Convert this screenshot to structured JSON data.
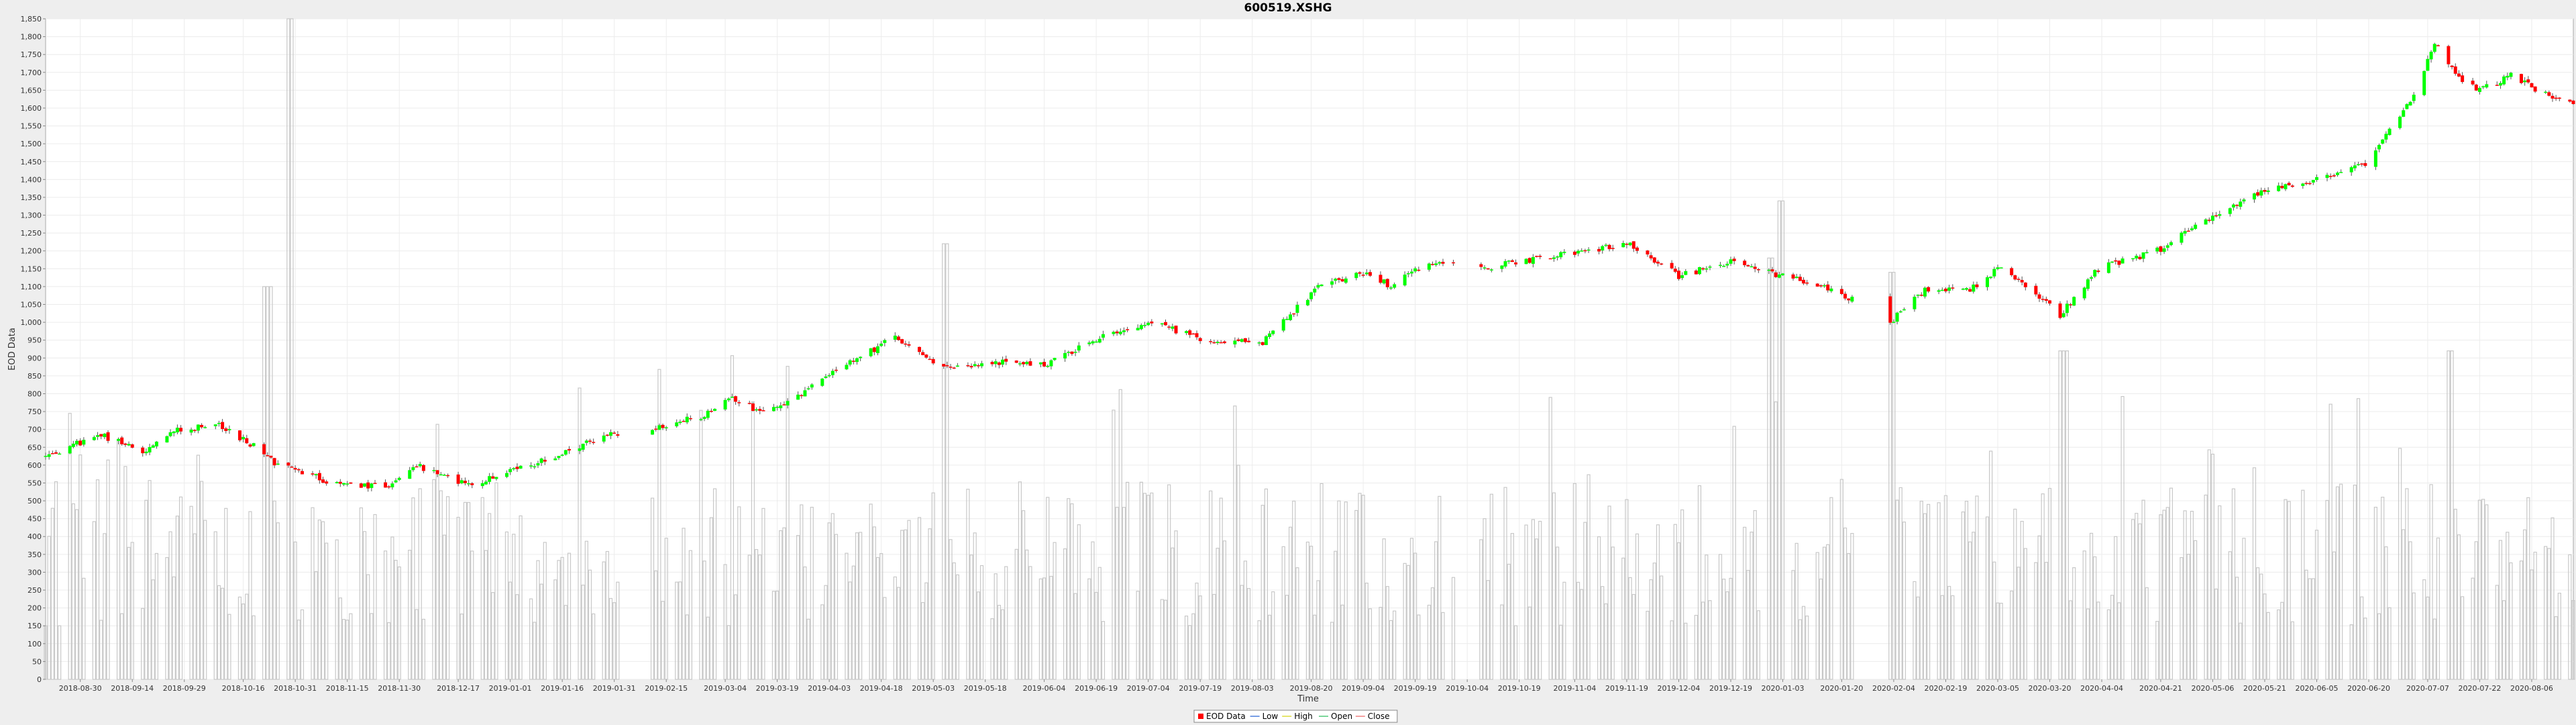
{
  "chart_data": {
    "type": "candlestick",
    "title": "600519.XSHG",
    "xlabel": "Time",
    "ylabel": "EOD Data",
    "ylim": [
      0,
      1850
    ],
    "y_ticks": [
      0,
      50,
      100,
      150,
      200,
      250,
      300,
      350,
      400,
      450,
      500,
      550,
      600,
      650,
      700,
      750,
      800,
      850,
      900,
      950,
      1000,
      1050,
      1100,
      1150,
      1200,
      1250,
      1300,
      1350,
      1400,
      1450,
      1500,
      1550,
      1600,
      1650,
      1700,
      1750,
      1800,
      1850
    ],
    "x_tick_labels": [
      "2018-08-30",
      "2018-09-14",
      "2018-09-29",
      "2018-10-16",
      "2018-10-31",
      "2018-11-15",
      "2018-11-30",
      "2018-12-17",
      "2019-01-01",
      "2019-01-16",
      "2019-01-31",
      "2019-02-15",
      "2019-03-04",
      "2019-03-19",
      "2019-04-03",
      "2019-04-18",
      "2019-05-03",
      "2019-05-18",
      "2019-06-04",
      "2019-06-19",
      "2019-07-04",
      "2019-07-19",
      "2019-08-03",
      "2019-08-20",
      "2019-09-04",
      "2019-09-19",
      "2019-10-04",
      "2019-10-19",
      "2019-11-04",
      "2019-11-19",
      "2019-12-04",
      "2019-12-19",
      "2020-01-03",
      "2020-01-20",
      "2020-02-04",
      "2020-02-19",
      "2020-03-05",
      "2020-03-20",
      "2020-04-04",
      "2020-04-21",
      "2020-05-06",
      "2020-05-21",
      "2020-06-05",
      "2020-06-20",
      "2020-07-07",
      "2020-07-22",
      "2020-08-06"
    ],
    "x_range": [
      "2018-08-20",
      "2020-08-18"
    ],
    "grid": true,
    "legend_position": "bottom",
    "legend": [
      {
        "label": "EOD Data",
        "color": "#ff0000"
      },
      {
        "label": "Low",
        "color": "#4a7ddc"
      },
      {
        "label": "High",
        "color": "#dcdc3c"
      },
      {
        "label": "Open",
        "color": "#50c878"
      },
      {
        "label": "Close",
        "color": "#f08080"
      }
    ],
    "colors": {
      "up": "#00ff00",
      "down": "#ff0000",
      "volume": "#c8c8c8",
      "wick": "#555555"
    },
    "anchors": [
      {
        "date": "2018-08-20",
        "close": 620
      },
      {
        "date": "2018-08-29",
        "close": 660
      },
      {
        "date": "2018-09-06",
        "close": 680
      },
      {
        "date": "2018-09-17",
        "close": 640
      },
      {
        "date": "2018-09-27",
        "close": 700
      },
      {
        "date": "2018-10-09",
        "close": 715
      },
      {
        "date": "2018-10-18",
        "close": 660
      },
      {
        "date": "2018-10-26",
        "close": 600
      },
      {
        "date": "2018-11-02",
        "close": 580
      },
      {
        "date": "2018-11-12",
        "close": 545
      },
      {
        "date": "2018-11-28",
        "close": 540
      },
      {
        "date": "2018-12-05",
        "close": 600
      },
      {
        "date": "2018-12-20",
        "close": 545
      },
      {
        "date": "2019-01-10",
        "close": 610
      },
      {
        "date": "2019-01-28",
        "close": 680
      },
      {
        "date": "2019-02-14",
        "close": 710
      },
      {
        "date": "2019-02-26",
        "close": 740
      },
      {
        "date": "2019-03-06",
        "close": 790
      },
      {
        "date": "2019-03-15",
        "close": 745
      },
      {
        "date": "2019-03-26",
        "close": 800
      },
      {
        "date": "2019-04-08",
        "close": 880
      },
      {
        "date": "2019-04-22",
        "close": 960
      },
      {
        "date": "2019-05-06",
        "close": 870
      },
      {
        "date": "2019-05-20",
        "close": 890
      },
      {
        "date": "2019-06-04",
        "close": 880
      },
      {
        "date": "2019-06-20",
        "close": 960
      },
      {
        "date": "2019-07-05",
        "close": 1000
      },
      {
        "date": "2019-07-20",
        "close": 950
      },
      {
        "date": "2019-08-06",
        "close": 945
      },
      {
        "date": "2019-08-22",
        "close": 1100
      },
      {
        "date": "2019-09-05",
        "close": 1140
      },
      {
        "date": "2019-09-12",
        "close": 1100
      },
      {
        "date": "2019-09-23",
        "close": 1170
      },
      {
        "date": "2019-10-08",
        "close": 1150
      },
      {
        "date": "2019-10-25",
        "close": 1180
      },
      {
        "date": "2019-11-08",
        "close": 1200
      },
      {
        "date": "2019-11-20",
        "close": 1220
      },
      {
        "date": "2019-12-04",
        "close": 1130
      },
      {
        "date": "2019-12-19",
        "close": 1170
      },
      {
        "date": "2020-01-03",
        "close": 1130
      },
      {
        "date": "2020-01-13",
        "close": 1105
      },
      {
        "date": "2020-01-23",
        "close": 1065
      },
      {
        "date": "2020-02-03",
        "close": 1000
      },
      {
        "date": "2020-02-13",
        "close": 1090
      },
      {
        "date": "2020-02-26",
        "close": 1090
      },
      {
        "date": "2020-03-06",
        "close": 1160
      },
      {
        "date": "2020-03-23",
        "close": 1020
      },
      {
        "date": "2020-04-03",
        "close": 1150
      },
      {
        "date": "2020-04-20",
        "close": 1200
      },
      {
        "date": "2020-05-06",
        "close": 1300
      },
      {
        "date": "2020-05-21",
        "close": 1370
      },
      {
        "date": "2020-06-05",
        "close": 1400
      },
      {
        "date": "2020-06-19",
        "close": 1440
      },
      {
        "date": "2020-07-02",
        "close": 1620
      },
      {
        "date": "2020-07-09",
        "close": 1780
      },
      {
        "date": "2020-07-16",
        "close": 1680
      },
      {
        "date": "2020-07-22",
        "close": 1650
      },
      {
        "date": "2020-07-31",
        "close": 1690
      },
      {
        "date": "2020-08-10",
        "close": 1640
      },
      {
        "date": "2020-08-18",
        "close": 1620
      }
    ],
    "volume_range": [
      150,
      560
    ],
    "volume_spikes": [
      {
        "date": "2018-10-29",
        "value": 1850
      },
      {
        "date": "2018-10-23",
        "value": 1100
      },
      {
        "date": "2019-05-06",
        "value": 1220
      },
      {
        "date": "2020-01-03",
        "value": 1340
      },
      {
        "date": "2020-03-24",
        "value": 920
      },
      {
        "date": "2020-07-13",
        "value": 920
      },
      {
        "date": "2020-02-03",
        "value": 1140
      },
      {
        "date": "2019-12-30",
        "value": 1180
      }
    ],
    "missing_ranges": [
      [
        "2019-02-04",
        "2019-02-10"
      ],
      [
        "2019-10-01",
        "2019-10-07"
      ],
      [
        "2020-01-24",
        "2020-02-02"
      ]
    ]
  }
}
